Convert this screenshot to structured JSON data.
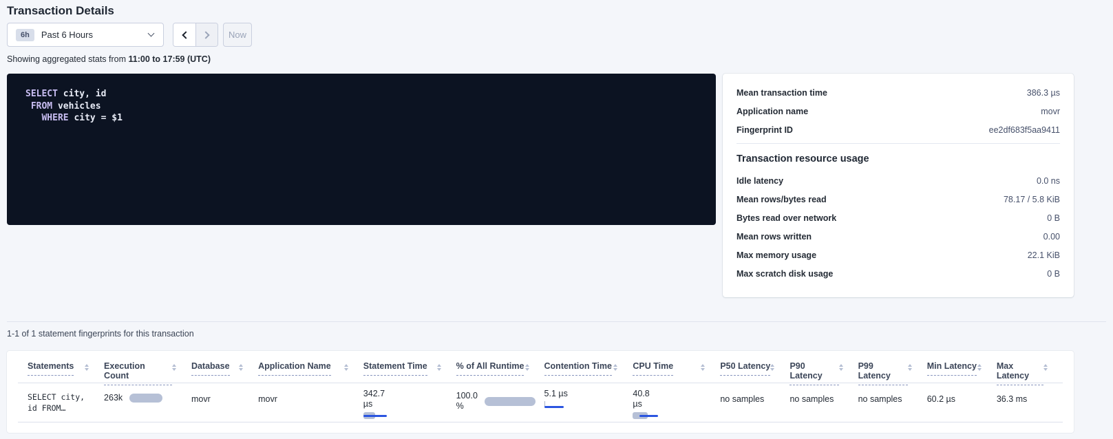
{
  "header": {
    "title": "Transaction Details",
    "time_picker": {
      "badge": "6h",
      "label": "Past 6 Hours"
    },
    "now_button": "Now",
    "showing_stats_prefix": "Showing aggregated stats from",
    "showing_stats_range": "11:00 to 17:59 (UTC)"
  },
  "sql": {
    "lines": [
      {
        "indent": "",
        "keyword": "SELECT",
        "rest": " city, id"
      },
      {
        "indent": " ",
        "keyword": "FROM",
        "rest": " vehicles"
      },
      {
        "indent": "   ",
        "keyword": "WHERE",
        "rest": " city = $1"
      }
    ]
  },
  "overview": {
    "rows": [
      {
        "label": "Mean transaction time",
        "value": "386.3 µs"
      },
      {
        "label": "Application name",
        "value": "movr"
      },
      {
        "label": "Fingerprint ID",
        "value": "ee2df683f5aa9411"
      }
    ],
    "resource_usage": {
      "title": "Transaction resource usage",
      "rows": [
        {
          "label": "Idle latency",
          "value": "0.0 ns"
        },
        {
          "label": "Mean rows/bytes read",
          "value": "78.17 / 5.8 KiB"
        },
        {
          "label": "Bytes read over network",
          "value": "0 B"
        },
        {
          "label": "Mean rows written",
          "value": "0.00"
        },
        {
          "label": "Max memory usage",
          "value": "22.1 KiB"
        },
        {
          "label": "Max scratch disk usage",
          "value": "0 B"
        }
      ]
    }
  },
  "statements": {
    "summary": "1-1 of 1 statement fingerprints for this transaction",
    "columns": [
      "Statements",
      "Execution Count",
      "Database",
      "Application Name",
      "Statement Time",
      "% of All Runtime",
      "Contention Time",
      "CPU Time",
      "P50 Latency",
      "P90 Latency",
      "P99 Latency",
      "Min Latency",
      "Max Latency"
    ],
    "row": {
      "statement_line1": "SELECT city,",
      "statement_line2": "id FROM…",
      "execution_count": "263k",
      "database": "movr",
      "application_name": "movr",
      "statement_time_value": "342.7",
      "statement_time_unit": "µs",
      "pct_runtime_value": "100.0",
      "pct_runtime_unit": "%",
      "contention_time": "5.1 µs",
      "cpu_time_value": "40.8",
      "cpu_time_unit": "µs",
      "p50_latency": "no samples",
      "p90_latency": "no samples",
      "p99_latency": "no samples",
      "min_latency": "60.2 µs",
      "max_latency": "36.3 ms"
    }
  },
  "colors": {
    "accent_blue": "#2b55e0",
    "bar_gray": "#b6c0d6",
    "sql_background": "#0c1322",
    "sql_keyword": "#c8bdf2",
    "page_background": "#f4f6fa"
  }
}
